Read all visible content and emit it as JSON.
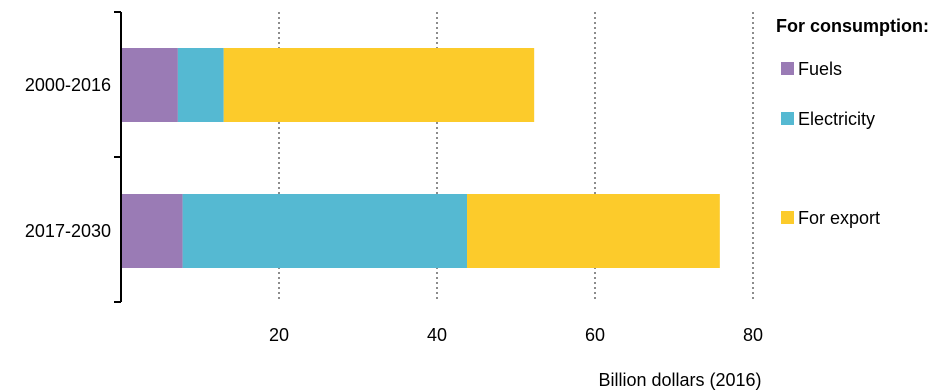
{
  "chart_data": {
    "type": "bar",
    "orientation": "horizontal",
    "stacked": true,
    "categories": [
      "2000-2016",
      "2017-2030"
    ],
    "series": [
      {
        "name": "Fuels",
        "color": "#9a7bb5",
        "values": [
          7.2,
          7.8
        ]
      },
      {
        "name": "Electricity",
        "color": "#55b9d2",
        "values": [
          5.8,
          36.0
        ]
      },
      {
        "name": "For export",
        "color": "#fccb2b",
        "values": [
          39.3,
          32.0
        ]
      }
    ],
    "xticks": [
      "20",
      "40",
      "60",
      "80"
    ],
    "xlim": [
      0,
      80
    ],
    "xlabel": "Billion dollars (2016)",
    "grid": "vertical dotted",
    "legend": {
      "title": "For consumption:",
      "placement": "right",
      "items": [
        "Fuels",
        "Electricity",
        "For export"
      ]
    }
  }
}
